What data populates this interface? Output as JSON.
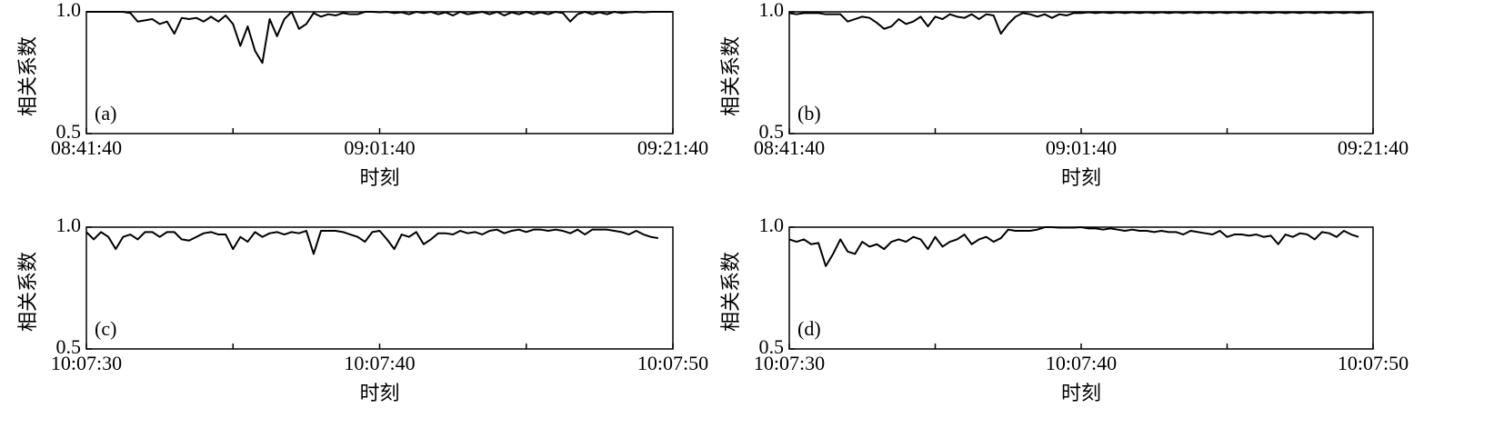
{
  "chart_data": [
    {
      "type": "line",
      "panel_label": "(a)",
      "ylabel": "相关系数",
      "xlabel": "时刻",
      "color": "#000000",
      "ylim": [
        0.5,
        1.0
      ],
      "yticks": [
        {
          "value": 0.5,
          "label": "0.5"
        },
        {
          "value": 1.0,
          "label": "1.0"
        }
      ],
      "xlim": [
        31300,
        33700
      ],
      "xticks": [
        {
          "value": 31300,
          "label": "08:41:40"
        },
        {
          "value": 31900,
          "label": null
        },
        {
          "value": 32500,
          "label": "09:01:40"
        },
        {
          "value": 33100,
          "label": null
        },
        {
          "value": 33700,
          "label": "09:21:40"
        }
      ],
      "x": [
        31300,
        31330,
        31360,
        31390,
        31420,
        31450,
        31480,
        31510,
        31540,
        31570,
        31600,
        31630,
        31660,
        31690,
        31720,
        31750,
        31780,
        31810,
        31840,
        31870,
        31900,
        31930,
        31960,
        31990,
        32020,
        32050,
        32080,
        32110,
        32140,
        32170,
        32200,
        32230,
        32260,
        32290,
        32320,
        32350,
        32380,
        32410,
        32440,
        32470,
        32500,
        32530,
        32560,
        32590,
        32620,
        32650,
        32680,
        32710,
        32740,
        32770,
        32800,
        32830,
        32860,
        32890,
        32920,
        32950,
        32980,
        33010,
        33040,
        33070,
        33100,
        33130,
        33160,
        33190,
        33220,
        33250,
        33280,
        33310,
        33340,
        33370,
        33400,
        33430,
        33460,
        33490,
        33520,
        33550,
        33580,
        33610,
        33640,
        33670,
        33700
      ],
      "values": [
        1,
        1,
        1,
        1,
        1,
        1,
        0.995,
        0.96,
        0.965,
        0.97,
        0.95,
        0.96,
        0.91,
        0.975,
        0.97,
        0.975,
        0.96,
        0.98,
        0.96,
        0.985,
        0.95,
        0.86,
        0.94,
        0.84,
        0.79,
        0.97,
        0.9,
        0.97,
        1,
        0.93,
        0.95,
        0.995,
        0.98,
        0.99,
        0.985,
        0.995,
        0.99,
        0.99,
        1,
        1,
        0.998,
        1,
        0.995,
        0.998,
        0.99,
        1,
        0.995,
        1,
        0.99,
        0.998,
        0.985,
        1,
        0.99,
        0.995,
        1,
        0.99,
        1,
        0.985,
        0.998,
        0.99,
        1,
        0.99,
        0.998,
        0.99,
        1,
        0.995,
        0.96,
        0.99,
        1,
        0.99,
        0.998,
        0.99,
        1,
        0.995,
        0.998,
        1,
        0.998,
        1,
        1,
        1,
        1
      ]
    },
    {
      "type": "line",
      "panel_label": "(b)",
      "ylabel": "相关系数",
      "xlabel": "时刻",
      "color": "#000000",
      "ylim": [
        0.5,
        1.0
      ],
      "yticks": [
        {
          "value": 0.5,
          "label": "0.5"
        },
        {
          "value": 1.0,
          "label": "1.0"
        }
      ],
      "xlim": [
        31300,
        33700
      ],
      "xticks": [
        {
          "value": 31300,
          "label": "08:41:40"
        },
        {
          "value": 31900,
          "label": null
        },
        {
          "value": 32500,
          "label": "09:01:40"
        },
        {
          "value": 33100,
          "label": null
        },
        {
          "value": 33700,
          "label": "09:21:40"
        }
      ],
      "x": [
        31300,
        31330,
        31360,
        31390,
        31420,
        31450,
        31480,
        31510,
        31540,
        31570,
        31600,
        31630,
        31660,
        31690,
        31720,
        31750,
        31780,
        31810,
        31840,
        31870,
        31900,
        31930,
        31960,
        31990,
        32020,
        32050,
        32080,
        32110,
        32140,
        32170,
        32200,
        32230,
        32260,
        32290,
        32320,
        32350,
        32380,
        32410,
        32440,
        32470,
        32500,
        32530,
        32560,
        32590,
        32620,
        32650,
        32680,
        32710,
        32740,
        32770,
        32800,
        32830,
        32860,
        32890,
        32920,
        32950,
        32980,
        33010,
        33040,
        33070,
        33100,
        33130,
        33160,
        33190,
        33220,
        33250,
        33280,
        33310,
        33340,
        33370,
        33400,
        33430,
        33460,
        33490,
        33520,
        33550,
        33580,
        33610,
        33640,
        33670,
        33700
      ],
      "values": [
        0.995,
        0.99,
        0.995,
        0.995,
        0.995,
        0.99,
        0.99,
        0.99,
        0.96,
        0.97,
        0.98,
        0.975,
        0.955,
        0.93,
        0.94,
        0.97,
        0.95,
        0.96,
        0.98,
        0.94,
        0.98,
        0.97,
        0.99,
        0.98,
        0.975,
        0.99,
        0.97,
        0.99,
        0.985,
        0.91,
        0.95,
        0.98,
        0.995,
        0.99,
        0.98,
        0.99,
        0.975,
        0.99,
        0.985,
        0.995,
        0.995,
        0.998,
        0.995,
        0.998,
        0.995,
        0.998,
        0.995,
        0.998,
        0.995,
        0.998,
        0.995,
        0.998,
        0.995,
        0.998,
        0.995,
        0.998,
        0.995,
        0.998,
        0.995,
        0.998,
        0.995,
        0.998,
        0.995,
        0.998,
        0.995,
        0.998,
        0.995,
        0.998,
        0.995,
        0.998,
        0.995,
        0.998,
        0.995,
        0.998,
        0.995,
        0.998,
        0.995,
        0.998,
        0.995,
        0.998,
        0.998
      ]
    },
    {
      "type": "line",
      "panel_label": "(c)",
      "ylabel": "相关系数",
      "xlabel": "时刻",
      "color": "#000000",
      "ylim": [
        0.5,
        1.0
      ],
      "yticks": [
        {
          "value": 0.5,
          "label": "0.5"
        },
        {
          "value": 1.0,
          "label": "1.0"
        }
      ],
      "xlim": [
        36450,
        36470
      ],
      "xticks": [
        {
          "value": 36450,
          "label": "10:07:30"
        },
        {
          "value": 36455,
          "label": null
        },
        {
          "value": 36460,
          "label": "10:07:40"
        },
        {
          "value": 36465,
          "label": null
        },
        {
          "value": 36470,
          "label": "10:07:50"
        }
      ],
      "x": [
        36450,
        36450.25,
        36450.5,
        36450.75,
        36451,
        36451.25,
        36451.5,
        36451.75,
        36452,
        36452.25,
        36452.5,
        36452.75,
        36453,
        36453.25,
        36453.5,
        36453.75,
        36454,
        36454.25,
        36454.5,
        36454.75,
        36455,
        36455.25,
        36455.5,
        36455.75,
        36456,
        36456.25,
        36456.5,
        36456.75,
        36457,
        36457.25,
        36457.5,
        36457.75,
        36458,
        36458.25,
        36458.5,
        36458.75,
        36459,
        36459.25,
        36459.5,
        36459.75,
        36460,
        36460.25,
        36460.5,
        36460.75,
        36461,
        36461.25,
        36461.5,
        36461.75,
        36462,
        36462.25,
        36462.5,
        36462.75,
        36463,
        36463.25,
        36463.5,
        36463.75,
        36464,
        36464.25,
        36464.5,
        36464.75,
        36465,
        36465.25,
        36465.5,
        36465.75,
        36466,
        36466.25,
        36466.5,
        36466.75,
        36467,
        36467.25,
        36467.5,
        36467.75,
        36468,
        36468.25,
        36468.5,
        36468.75,
        36469,
        36469.25,
        36469.5
      ],
      "values": [
        0.98,
        0.95,
        0.98,
        0.96,
        0.91,
        0.96,
        0.97,
        0.95,
        0.98,
        0.98,
        0.96,
        0.98,
        0.98,
        0.95,
        0.945,
        0.96,
        0.975,
        0.98,
        0.97,
        0.97,
        0.91,
        0.96,
        0.94,
        0.98,
        0.96,
        0.975,
        0.98,
        0.97,
        0.98,
        0.975,
        0.985,
        0.89,
        0.985,
        0.985,
        0.985,
        0.98,
        0.97,
        0.96,
        0.94,
        0.98,
        0.985,
        0.95,
        0.91,
        0.97,
        0.96,
        0.98,
        0.93,
        0.95,
        0.975,
        0.975,
        0.97,
        0.985,
        0.975,
        0.98,
        0.97,
        0.985,
        0.99,
        0.975,
        0.985,
        0.99,
        0.98,
        0.99,
        0.99,
        0.985,
        0.99,
        0.985,
        0.975,
        0.99,
        0.97,
        0.99,
        0.99,
        0.99,
        0.985,
        0.98,
        0.97,
        0.985,
        0.97,
        0.96,
        0.955
      ]
    },
    {
      "type": "line",
      "panel_label": "(d)",
      "ylabel": "相关系数",
      "xlabel": "时刻",
      "color": "#000000",
      "ylim": [
        0.5,
        1.0
      ],
      "yticks": [
        {
          "value": 0.5,
          "label": "0.5"
        },
        {
          "value": 1.0,
          "label": "1.0"
        }
      ],
      "xlim": [
        36450,
        36470
      ],
      "xticks": [
        {
          "value": 36450,
          "label": "10:07:30"
        },
        {
          "value": 36455,
          "label": null
        },
        {
          "value": 36460,
          "label": "10:07:40"
        },
        {
          "value": 36465,
          "label": null
        },
        {
          "value": 36470,
          "label": "10:07:50"
        }
      ],
      "x": [
        36450,
        36450.25,
        36450.5,
        36450.75,
        36451,
        36451.25,
        36451.5,
        36451.75,
        36452,
        36452.25,
        36452.5,
        36452.75,
        36453,
        36453.25,
        36453.5,
        36453.75,
        36454,
        36454.25,
        36454.5,
        36454.75,
        36455,
        36455.25,
        36455.5,
        36455.75,
        36456,
        36456.25,
        36456.5,
        36456.75,
        36457,
        36457.25,
        36457.5,
        36457.75,
        36458,
        36458.25,
        36458.5,
        36458.75,
        36459,
        36459.25,
        36459.5,
        36459.75,
        36460,
        36460.25,
        36460.5,
        36460.75,
        36461,
        36461.25,
        36461.5,
        36461.75,
        36462,
        36462.25,
        36462.5,
        36462.75,
        36463,
        36463.25,
        36463.5,
        36463.75,
        36464,
        36464.25,
        36464.5,
        36464.75,
        36465,
        36465.25,
        36465.5,
        36465.75,
        36466,
        36466.25,
        36466.5,
        36466.75,
        36467,
        36467.25,
        36467.5,
        36467.75,
        36468,
        36468.25,
        36468.5,
        36468.75,
        36469,
        36469.25,
        36469.5
      ],
      "values": [
        0.95,
        0.94,
        0.95,
        0.93,
        0.935,
        0.84,
        0.89,
        0.95,
        0.9,
        0.89,
        0.94,
        0.92,
        0.93,
        0.91,
        0.94,
        0.95,
        0.94,
        0.96,
        0.95,
        0.91,
        0.96,
        0.92,
        0.94,
        0.95,
        0.97,
        0.93,
        0.95,
        0.96,
        0.94,
        0.955,
        0.99,
        0.985,
        0.985,
        0.985,
        0.99,
        1,
        1,
        0.998,
        0.998,
        0.998,
        1,
        0.995,
        0.995,
        0.99,
        0.995,
        0.99,
        0.985,
        0.99,
        0.985,
        0.985,
        0.98,
        0.985,
        0.98,
        0.98,
        0.97,
        0.985,
        0.98,
        0.975,
        0.97,
        0.985,
        0.96,
        0.97,
        0.97,
        0.965,
        0.97,
        0.96,
        0.965,
        0.93,
        0.97,
        0.96,
        0.975,
        0.97,
        0.95,
        0.98,
        0.975,
        0.96,
        0.985,
        0.97,
        0.96
      ]
    }
  ]
}
